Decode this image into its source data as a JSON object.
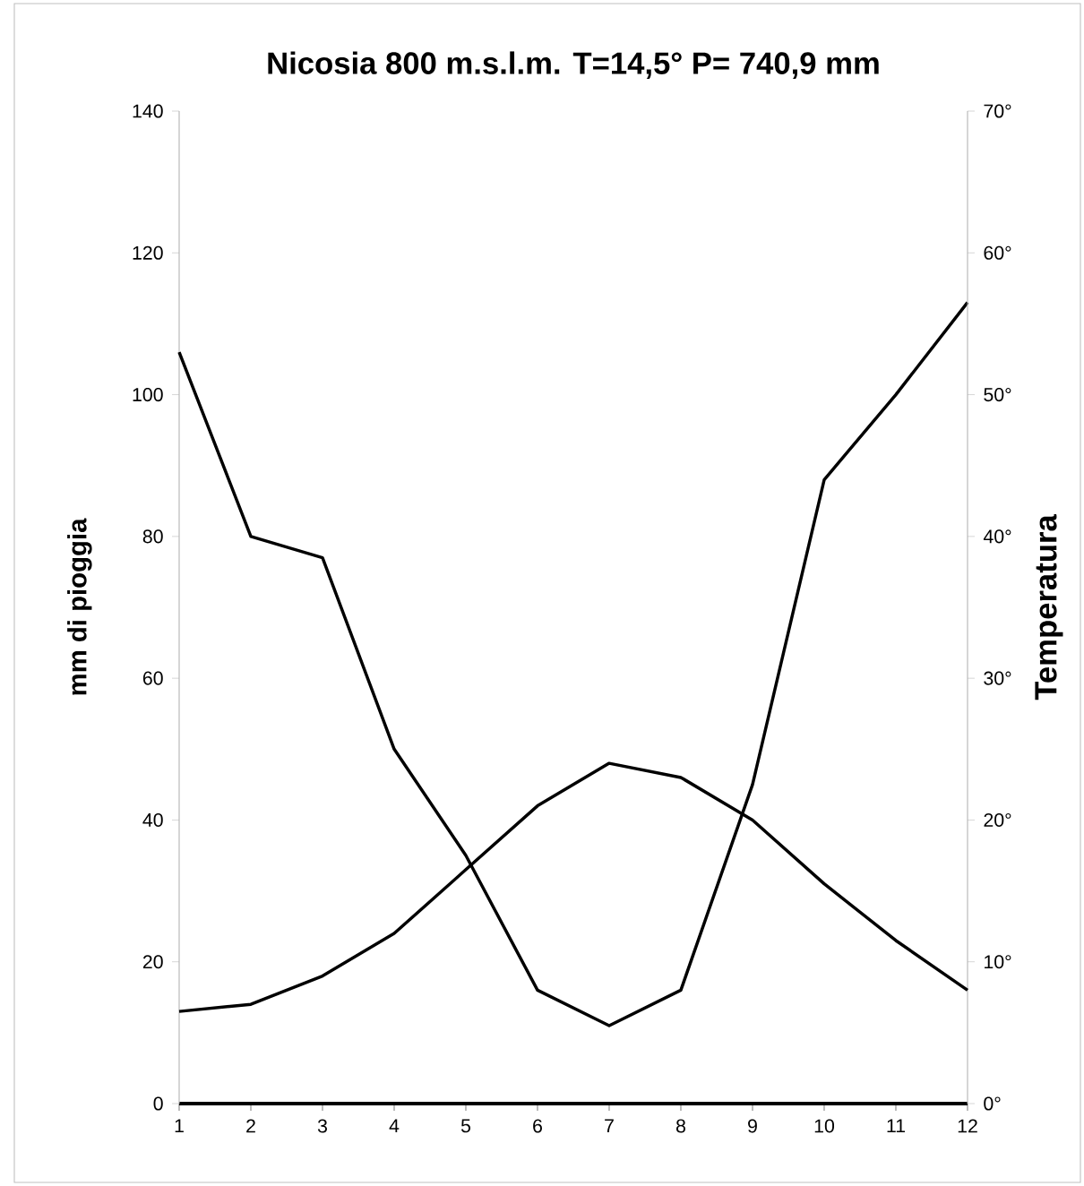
{
  "chart_data": {
    "type": "line",
    "title": "Nicosia    800 m.s.l.m. T=14,5°   P= 740,9 mm",
    "ylabel": "mm di pioggia",
    "y2label": "Temperatura",
    "x": [
      1,
      2,
      3,
      4,
      5,
      6,
      7,
      8,
      9,
      10,
      11,
      12
    ],
    "xlim": [
      1,
      12
    ],
    "xticks": [
      1,
      2,
      3,
      4,
      5,
      6,
      7,
      8,
      9,
      10,
      11,
      12
    ],
    "ylim": [
      0,
      140
    ],
    "yticks": [
      0,
      20,
      40,
      60,
      80,
      100,
      120,
      140
    ],
    "y2lim": [
      0,
      70
    ],
    "y2ticks": [
      {
        "value": 0,
        "label": "0°"
      },
      {
        "value": 10,
        "label": "10°"
      },
      {
        "value": 20,
        "label": "20°"
      },
      {
        "value": 30,
        "label": "30°"
      },
      {
        "value": 40,
        "label": "40°"
      },
      {
        "value": 50,
        "label": "50°"
      },
      {
        "value": 60,
        "label": "60°"
      },
      {
        "value": 70,
        "label": "70°"
      }
    ],
    "series": [
      {
        "color": "#000000",
        "values": [
          106,
          80,
          77,
          50,
          35,
          16,
          11,
          16,
          45,
          88,
          100,
          113
        ]
      },
      {
        "color": "#000000",
        "axis": "y2",
        "values": [
          6.5,
          7,
          9,
          12,
          16.5,
          21,
          24,
          23,
          20,
          15.5,
          11.5,
          8
        ]
      }
    ],
    "marker": "none",
    "line_style": "solid"
  }
}
